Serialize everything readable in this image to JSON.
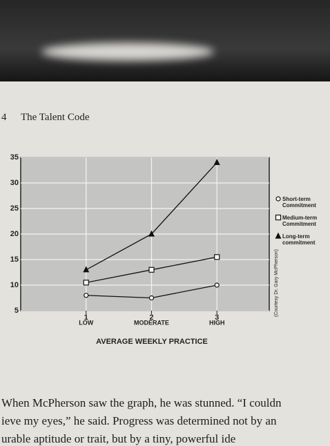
{
  "page": {
    "page_number": "4",
    "running_title": "The Talent Code",
    "body_lines": [
      "When McPherson saw the graph, he was stunned. “I couldn",
      "ieve my eyes,” he said. Progress was determined not by an",
      "urable aptitude or trait, but by a tiny, powerful ide"
    ]
  },
  "chart_data": {
    "type": "line",
    "x_title": "AVERAGE WEEKLY PRACTICE",
    "credit": "(Courtesy Dr. Gary McPherson)",
    "x": [
      1,
      2,
      3
    ],
    "xlim": [
      0,
      3.8
    ],
    "xticks": [
      1,
      2,
      3
    ],
    "x_level_labels": [
      "LOW",
      "MODERATE",
      "HIGH"
    ],
    "ylim": [
      5,
      35
    ],
    "yticks": [
      5,
      10,
      15,
      20,
      25,
      30,
      35
    ],
    "grid": true,
    "series": [
      {
        "name": "Short-term Commitment",
        "color": "#111111",
        "marker": "circle",
        "values": [
          8,
          7.5,
          10
        ]
      },
      {
        "name": "Medium-term Commitment",
        "color": "#111111",
        "marker": "square",
        "values": [
          10.5,
          13,
          15.5
        ]
      },
      {
        "name": "Long-term commitment",
        "color": "#111111",
        "marker": "triangle",
        "values": [
          13,
          20,
          34
        ]
      }
    ]
  }
}
